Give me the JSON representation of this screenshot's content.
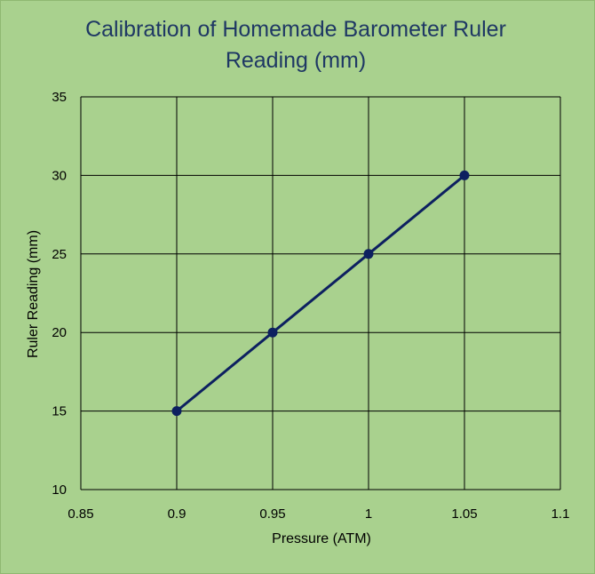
{
  "chart_data": {
    "type": "line",
    "title": "Calibration of Homemade Barometer  Ruler",
    "subtitle": "Reading (mm)",
    "xlabel": "Pressure (ATM)",
    "ylabel": "Ruler Reading (mm)",
    "x": [
      0.9,
      0.95,
      1,
      1.05
    ],
    "y": [
      15,
      20,
      25,
      30
    ],
    "xlim": [
      0.85,
      1.1
    ],
    "ylim": [
      10,
      35
    ],
    "xticks": [
      "0.85",
      "0.9",
      "0.95",
      "1",
      "1.05",
      "1.1"
    ],
    "yticks": [
      "10",
      "15",
      "20",
      "25",
      "30",
      "35"
    ],
    "grid": true,
    "legend": "none",
    "colors": {
      "background": "#a9d18e",
      "title": "#1f3864",
      "line": "#0d2060",
      "marker": "#0d2060",
      "grid": "#000000"
    }
  }
}
